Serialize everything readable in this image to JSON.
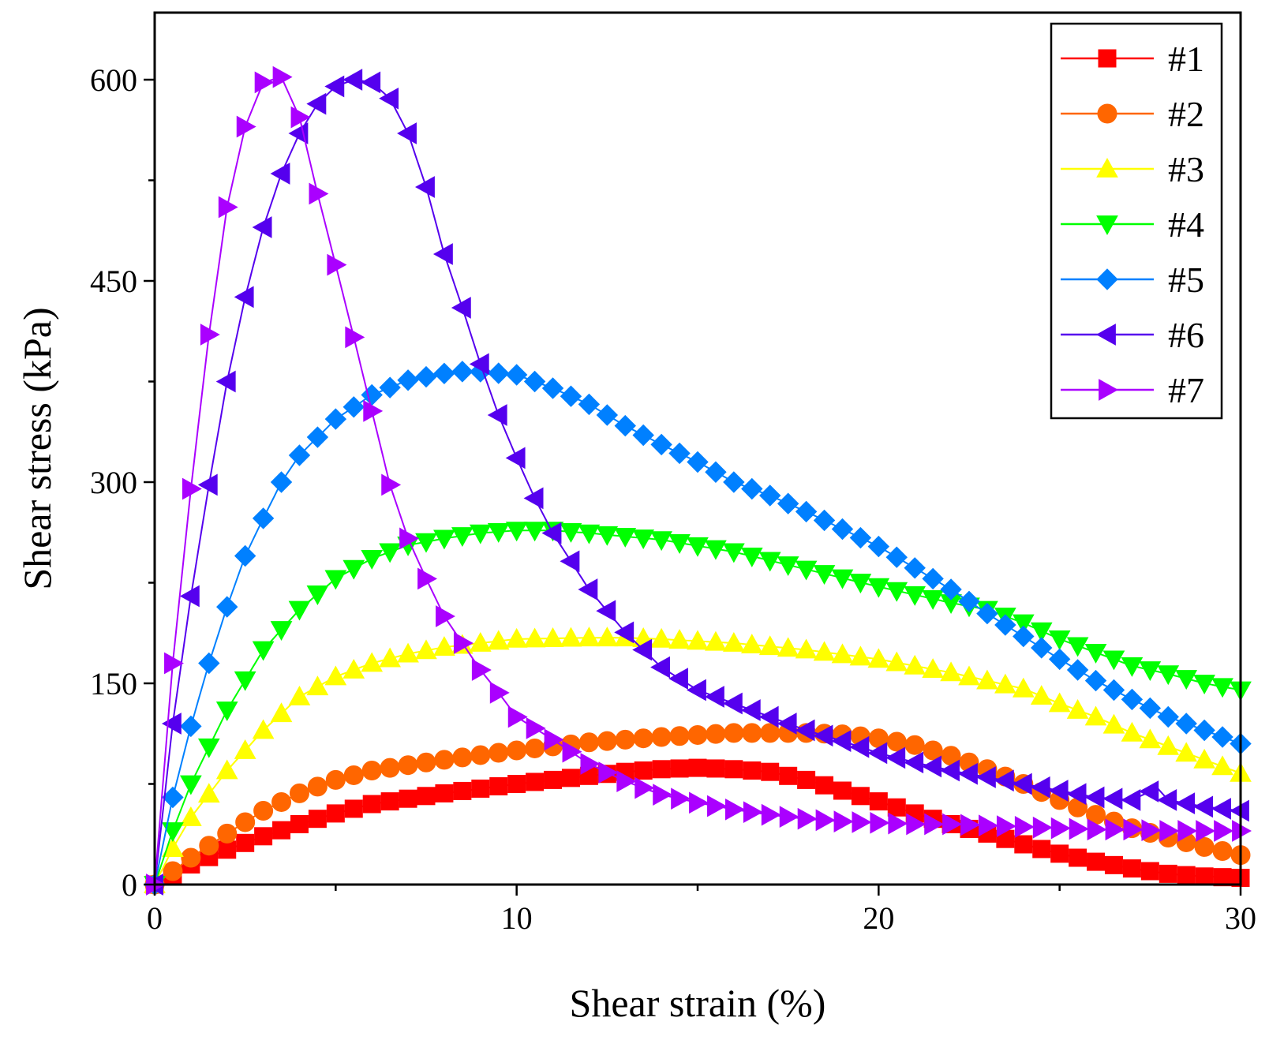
{
  "chart_data": {
    "type": "line",
    "title": "",
    "xlabel": "Shear strain (%)",
    "ylabel": "Shear stress (kPa)",
    "xlim": [
      0,
      30
    ],
    "ylim": [
      0,
      650
    ],
    "xticks": [
      0,
      10,
      20,
      30
    ],
    "yticks": [
      0,
      150,
      300,
      450,
      600
    ],
    "x_minor_step": 5,
    "y_minor_step": 75,
    "grid": false,
    "legend_position": "top-right",
    "series": [
      {
        "name": "#1",
        "color": "#ff0000",
        "marker": "square",
        "marker_step": 0.5,
        "anchors": [
          [
            0,
            0
          ],
          [
            1,
            15
          ],
          [
            2,
            26
          ],
          [
            3,
            36
          ],
          [
            4,
            45
          ],
          [
            5,
            53
          ],
          [
            6,
            60
          ],
          [
            8,
            68
          ],
          [
            10,
            75
          ],
          [
            12,
            81
          ],
          [
            13,
            84
          ],
          [
            14,
            86
          ],
          [
            15,
            87
          ],
          [
            16,
            86
          ],
          [
            17,
            84
          ],
          [
            18,
            78
          ],
          [
            19,
            70
          ],
          [
            20,
            62
          ],
          [
            21,
            53
          ],
          [
            22,
            45
          ],
          [
            23,
            38
          ],
          [
            24,
            30
          ],
          [
            25,
            23
          ],
          [
            26,
            17
          ],
          [
            27,
            12
          ],
          [
            28,
            8
          ],
          [
            29,
            6
          ],
          [
            30,
            5
          ]
        ]
      },
      {
        "name": "#2",
        "color": "#ff6600",
        "marker": "circle",
        "marker_step": 0.5,
        "anchors": [
          [
            0,
            0
          ],
          [
            0.5,
            10
          ],
          [
            1,
            20
          ],
          [
            2,
            38
          ],
          [
            3,
            55
          ],
          [
            4,
            68
          ],
          [
            5,
            78
          ],
          [
            6,
            85
          ],
          [
            8,
            93
          ],
          [
            10,
            100
          ],
          [
            12,
            106
          ],
          [
            14,
            110
          ],
          [
            16,
            113
          ],
          [
            18,
            113
          ],
          [
            19,
            112
          ],
          [
            20,
            109
          ],
          [
            21,
            104
          ],
          [
            22,
            96
          ],
          [
            23,
            86
          ],
          [
            24,
            75
          ],
          [
            25,
            63
          ],
          [
            26,
            52
          ],
          [
            27,
            42
          ],
          [
            28,
            35
          ],
          [
            29,
            28
          ],
          [
            30,
            22
          ]
        ]
      },
      {
        "name": "#3",
        "color": "#ffff00",
        "marker": "triangle-up",
        "marker_step": 0.5,
        "anchors": [
          [
            0,
            0
          ],
          [
            0.5,
            27
          ],
          [
            1,
            50
          ],
          [
            2,
            85
          ],
          [
            3,
            115
          ],
          [
            4,
            140
          ],
          [
            5,
            155
          ],
          [
            6,
            165
          ],
          [
            7,
            172
          ],
          [
            8,
            177
          ],
          [
            9,
            180
          ],
          [
            10,
            183
          ],
          [
            12,
            184
          ],
          [
            13,
            184
          ],
          [
            14,
            183
          ],
          [
            16,
            180
          ],
          [
            18,
            175
          ],
          [
            20,
            168
          ],
          [
            22,
            158
          ],
          [
            24,
            146
          ],
          [
            25,
            135
          ],
          [
            26,
            125
          ],
          [
            27,
            113
          ],
          [
            28,
            103
          ],
          [
            29,
            93
          ],
          [
            30,
            83
          ]
        ]
      },
      {
        "name": "#4",
        "color": "#00ff00",
        "marker": "triangle-down",
        "marker_step": 0.5,
        "anchors": [
          [
            0,
            0
          ],
          [
            0.5,
            40
          ],
          [
            1,
            75
          ],
          [
            2,
            130
          ],
          [
            3,
            175
          ],
          [
            4,
            205
          ],
          [
            5,
            228
          ],
          [
            6,
            243
          ],
          [
            7,
            253
          ],
          [
            8,
            258
          ],
          [
            9,
            262
          ],
          [
            10,
            264
          ],
          [
            11,
            264
          ],
          [
            12,
            262
          ],
          [
            14,
            257
          ],
          [
            16,
            248
          ],
          [
            18,
            235
          ],
          [
            20,
            222
          ],
          [
            22,
            210
          ],
          [
            23,
            205
          ],
          [
            24,
            195
          ],
          [
            25,
            183
          ],
          [
            26,
            173
          ],
          [
            27,
            163
          ],
          [
            28,
            157
          ],
          [
            29,
            150
          ],
          [
            30,
            145
          ]
        ]
      },
      {
        "name": "#5",
        "color": "#0080ff",
        "marker": "diamond",
        "marker_step": 0.5,
        "anchors": [
          [
            0,
            0
          ],
          [
            0.5,
            65
          ],
          [
            1,
            118
          ],
          [
            1.5,
            165
          ],
          [
            2,
            207
          ],
          [
            2.5,
            245
          ],
          [
            3,
            273
          ],
          [
            3.5,
            300
          ],
          [
            4,
            320
          ],
          [
            5,
            347
          ],
          [
            6,
            365
          ],
          [
            7,
            376
          ],
          [
            8,
            381
          ],
          [
            8.7,
            383
          ],
          [
            10,
            380
          ],
          [
            11,
            370
          ],
          [
            12,
            358
          ],
          [
            13,
            342
          ],
          [
            14,
            328
          ],
          [
            15,
            315
          ],
          [
            16,
            300
          ],
          [
            17,
            290
          ],
          [
            18,
            278
          ],
          [
            19,
            265
          ],
          [
            20,
            252
          ],
          [
            21,
            236
          ],
          [
            22,
            220
          ],
          [
            23,
            202
          ],
          [
            24,
            185
          ],
          [
            25,
            168
          ],
          [
            26,
            152
          ],
          [
            27,
            138
          ],
          [
            28,
            125
          ],
          [
            29,
            115
          ],
          [
            30,
            105
          ]
        ]
      },
      {
        "name": "#6",
        "color": "#5500ee",
        "marker": "triangle-left",
        "marker_step": 0.5,
        "anchors": [
          [
            0,
            0
          ],
          [
            0.5,
            120
          ],
          [
            1,
            215
          ],
          [
            1.5,
            298
          ],
          [
            2,
            375
          ],
          [
            2.5,
            438
          ],
          [
            3,
            490
          ],
          [
            3.5,
            530
          ],
          [
            4,
            560
          ],
          [
            4.5,
            582
          ],
          [
            5,
            595
          ],
          [
            5.5,
            600
          ],
          [
            6,
            598
          ],
          [
            6.5,
            586
          ],
          [
            7,
            560
          ],
          [
            7.5,
            520
          ],
          [
            8,
            470
          ],
          [
            8.5,
            430
          ],
          [
            9,
            388
          ],
          [
            9.5,
            350
          ],
          [
            10,
            318
          ],
          [
            10.5,
            288
          ],
          [
            11,
            262
          ],
          [
            12,
            220
          ],
          [
            13,
            188
          ],
          [
            14,
            162
          ],
          [
            15,
            145
          ],
          [
            16,
            135
          ],
          [
            17,
            125
          ],
          [
            18,
            115
          ],
          [
            19,
            107
          ],
          [
            20,
            98
          ],
          [
            21,
            91
          ],
          [
            22,
            85
          ],
          [
            23,
            80
          ],
          [
            24,
            75
          ],
          [
            25,
            70
          ],
          [
            26,
            65
          ],
          [
            27,
            63
          ],
          [
            27.7,
            72
          ],
          [
            28,
            63
          ],
          [
            29,
            58
          ],
          [
            30,
            55
          ]
        ]
      },
      {
        "name": "#7",
        "color": "#aa00ff",
        "marker": "triangle-right",
        "marker_step": 0.5,
        "anchors": [
          [
            0,
            0
          ],
          [
            0.5,
            165
          ],
          [
            1,
            295
          ],
          [
            1.5,
            410
          ],
          [
            2,
            505
          ],
          [
            2.5,
            565
          ],
          [
            3,
            598
          ],
          [
            3.5,
            602
          ],
          [
            4,
            572
          ],
          [
            4.5,
            515
          ],
          [
            5,
            462
          ],
          [
            5.5,
            408
          ],
          [
            6,
            353
          ],
          [
            6.5,
            298
          ],
          [
            7,
            258
          ],
          [
            7.5,
            228
          ],
          [
            8,
            200
          ],
          [
            8.5,
            180
          ],
          [
            9,
            160
          ],
          [
            9.5,
            143
          ],
          [
            10,
            125
          ],
          [
            11,
            108
          ],
          [
            12,
            90
          ],
          [
            13,
            77
          ],
          [
            14,
            67
          ],
          [
            15,
            61
          ],
          [
            16,
            56
          ],
          [
            17,
            52
          ],
          [
            18,
            49
          ],
          [
            19,
            47
          ],
          [
            20,
            46
          ],
          [
            21,
            45
          ],
          [
            22,
            45
          ],
          [
            23,
            44
          ],
          [
            24,
            43
          ],
          [
            25,
            42
          ],
          [
            26,
            41
          ],
          [
            27,
            41
          ],
          [
            28,
            40
          ],
          [
            29,
            40
          ],
          [
            30,
            40
          ]
        ]
      }
    ]
  }
}
